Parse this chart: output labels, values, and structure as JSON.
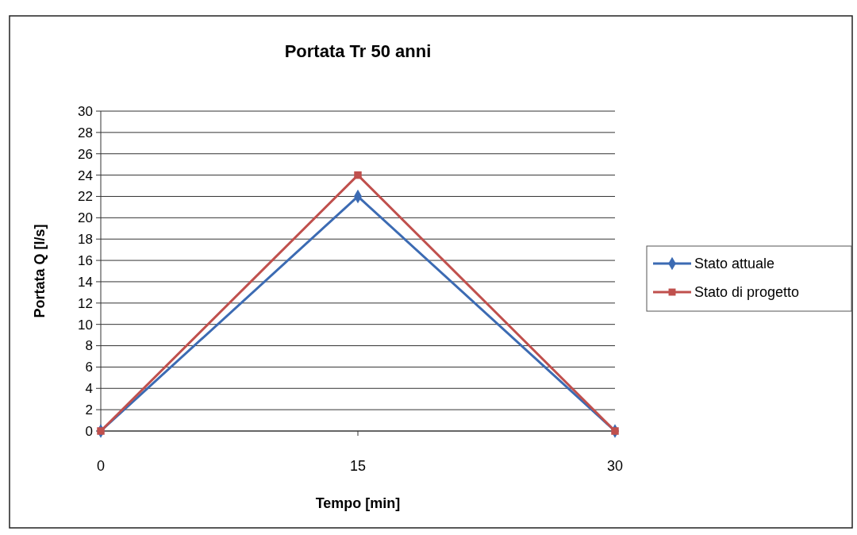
{
  "chart_data": {
    "type": "line",
    "title": "Portata Tr 50 anni",
    "xlabel": "Tempo [min]",
    "ylabel": "Portata Q [l/s]",
    "x": [
      0,
      15,
      30
    ],
    "xlim": [
      0,
      30
    ],
    "xticks": [
      0,
      15,
      30
    ],
    "ylim": [
      0,
      30
    ],
    "yticks": [
      0,
      2,
      4,
      6,
      8,
      10,
      12,
      14,
      16,
      18,
      20,
      22,
      24,
      26,
      28,
      30
    ],
    "grid": "y",
    "legend": "right",
    "series": [
      {
        "name": "Stato attuale",
        "color": "#3c6bb3",
        "marker": "diamond",
        "values": [
          0,
          22,
          0
        ]
      },
      {
        "name": "Stato di progetto",
        "color": "#c0504d",
        "marker": "square",
        "values": [
          0,
          24,
          0
        ]
      }
    ]
  }
}
